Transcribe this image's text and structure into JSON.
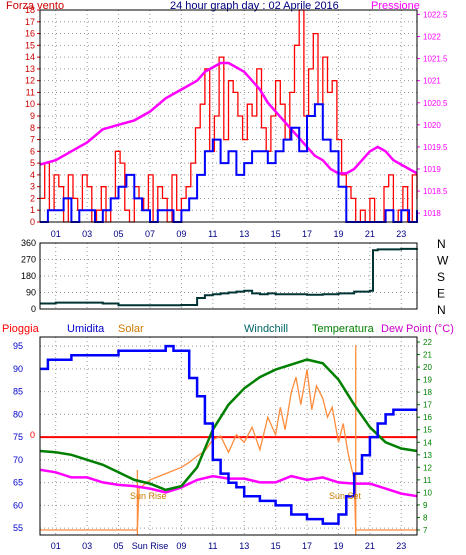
{
  "colors": {
    "wind": "#ff0000",
    "wind_avg": "#0000ff",
    "pressure": "#ff00ff",
    "direction": "#003333",
    "rain": "#ff0000",
    "humidity": "#0000ff",
    "solar": "#ff8c3c",
    "windchill": "#006666",
    "temperature": "#008000",
    "dew_point": "#ff00ff",
    "axis_left": "#cc0000",
    "axis_right": "#ff00ff",
    "grid": "#999999",
    "frame": "#000000"
  },
  "chart_data": [
    {
      "type": "line",
      "title": "24 hour graph day : 02 Aprile 2016",
      "label_left": "Forza vento",
      "label_right": "Pressione",
      "y_left_ticks": [
        "0",
        "1",
        "2",
        "3",
        "4",
        "5",
        "6",
        "7",
        "8",
        "9",
        "10",
        "11",
        "12",
        "13",
        "14",
        "15",
        "16",
        "17",
        "18"
      ],
      "y_right_ticks": [
        "1018",
        "1018.5",
        "1019",
        "1019.5",
        "1020",
        "1020.5",
        "1021",
        "1021.5",
        "1022",
        "1022.5"
      ],
      "x_ticks": [
        "01",
        "03",
        "05",
        "07",
        "09",
        "11",
        "13",
        "15",
        "17",
        "19",
        "21",
        "23"
      ],
      "ylim_left": [
        0,
        18
      ],
      "ylim_right": [
        1017.8,
        1022.6
      ],
      "xlim": [
        0,
        24
      ],
      "series": [
        {
          "name": "wind_gust",
          "x": [
            0,
            0.3,
            0.6,
            0.9,
            1.2,
            1.5,
            1.8,
            2.1,
            2.4,
            2.7,
            3.0,
            3.3,
            3.6,
            3.9,
            4.2,
            4.5,
            4.8,
            5.1,
            5.4,
            5.7,
            6.0,
            6.3,
            6.6,
            6.9,
            7.2,
            7.5,
            7.8,
            8.1,
            8.4,
            8.7,
            9.0,
            9.3,
            9.6,
            9.9,
            10.2,
            10.5,
            10.8,
            11.1,
            11.4,
            11.7,
            12.0,
            12.3,
            12.6,
            12.9,
            13.2,
            13.5,
            13.8,
            14.1,
            14.4,
            14.7,
            15.0,
            15.3,
            15.6,
            15.9,
            16.2,
            16.5,
            16.8,
            17.1,
            17.4,
            17.7,
            18.0,
            18.3,
            18.6,
            18.9,
            19.2,
            19.5,
            19.8,
            20.1,
            20.4,
            20.7,
            21.0,
            21.3,
            21.6,
            21.9,
            22.2,
            22.5,
            22.8,
            23.1,
            23.4,
            23.7,
            24.0
          ],
          "values": [
            2,
            5,
            1,
            4,
            3,
            0,
            4,
            2,
            1,
            4,
            3,
            0,
            1,
            3,
            0,
            2,
            6,
            5,
            1,
            0,
            3,
            2,
            1,
            4,
            0,
            3,
            2,
            0,
            4,
            1,
            2,
            3,
            5,
            8,
            10,
            13,
            6,
            9,
            14,
            7,
            12,
            11,
            9,
            7,
            10,
            9,
            13,
            8,
            6,
            9,
            12,
            10,
            7,
            11,
            15,
            18,
            9,
            13,
            16,
            10,
            14,
            11,
            12,
            7,
            4,
            3,
            2,
            0,
            1,
            0,
            2,
            0,
            0,
            3,
            4,
            0,
            1,
            3,
            0,
            4,
            2
          ]
        },
        {
          "name": "wind_avg",
          "x": [
            0,
            0.5,
            1,
            1.5,
            2,
            2.5,
            3,
            3.5,
            4,
            4.5,
            5,
            5.5,
            6,
            6.5,
            7,
            7.5,
            8,
            8.5,
            9,
            9.5,
            10,
            10.5,
            11,
            11.5,
            12,
            12.5,
            13,
            13.5,
            14,
            14.5,
            15,
            15.5,
            16,
            16.5,
            17,
            17.5,
            18,
            18.5,
            19,
            19.5,
            20,
            20.5,
            21,
            21.5,
            22,
            22.5,
            23,
            23.5,
            24
          ],
          "values": [
            0,
            1,
            1,
            2,
            0,
            1,
            1,
            0,
            1,
            2,
            3,
            4,
            2,
            1,
            0,
            1,
            1,
            0,
            1,
            2,
            4,
            6,
            7,
            5,
            6,
            4,
            5,
            6,
            6,
            5,
            6,
            7,
            8,
            6,
            9,
            10,
            7,
            6,
            3,
            0,
            0,
            0,
            0,
            0,
            1,
            0,
            1,
            0,
            1
          ]
        },
        {
          "name": "pressure",
          "x": [
            0,
            1,
            2,
            3,
            4,
            5,
            6,
            7,
            8,
            9,
            10,
            10.5,
            11,
            11.5,
            12,
            12.5,
            13,
            13.5,
            14,
            14.5,
            15,
            15.5,
            16,
            16.5,
            17,
            17.5,
            18,
            18.5,
            19,
            19.5,
            20,
            20.5,
            21,
            21.5,
            22,
            22.5,
            23,
            23.5,
            24
          ],
          "values": [
            1019.1,
            1019.2,
            1019.4,
            1019.6,
            1019.9,
            1020.0,
            1020.1,
            1020.3,
            1020.6,
            1020.8,
            1021.0,
            1021.2,
            1021.3,
            1021.4,
            1021.4,
            1021.3,
            1021.2,
            1021.0,
            1020.8,
            1020.5,
            1020.3,
            1020.1,
            1019.9,
            1019.7,
            1019.5,
            1019.3,
            1019.2,
            1019.0,
            1018.9,
            1018.9,
            1019.0,
            1019.2,
            1019.4,
            1019.5,
            1019.4,
            1019.2,
            1019.1,
            1019.0,
            1018.9
          ]
        }
      ]
    },
    {
      "type": "line",
      "y_ticks": [
        "360",
        "270",
        "180",
        "90",
        "0"
      ],
      "right_labels": [
        "N",
        "W",
        "S",
        "E",
        "N"
      ],
      "ylim": [
        0,
        360
      ],
      "xlim": [
        0,
        24
      ],
      "series": [
        {
          "name": "wind_direction",
          "x": [
            0,
            1,
            2,
            3,
            4,
            5,
            6,
            7,
            8,
            9,
            10,
            10.5,
            11,
            11.5,
            12,
            12.5,
            13,
            13.5,
            14,
            14.5,
            15,
            16,
            17,
            18,
            19,
            20,
            21,
            21.2,
            21.5,
            22,
            23,
            24
          ],
          "values": [
            30,
            35,
            35,
            35,
            30,
            20,
            20,
            20,
            20,
            22,
            60,
            75,
            80,
            85,
            90,
            95,
            100,
            85,
            80,
            85,
            80,
            80,
            78,
            80,
            85,
            95,
            100,
            320,
            325,
            325,
            328,
            330
          ]
        }
      ]
    },
    {
      "type": "line",
      "label_rain": "Pioggia",
      "label_humidity": "Umidita",
      "label_solar": "Solar",
      "label_windchill": "Windchill",
      "label_temperature": "Temperatura",
      "label_dew": "Dew Point (°C)",
      "rain_marker": "0",
      "y_left_ticks": [
        "95",
        "90",
        "85",
        "80",
        "75",
        "70",
        "65",
        "60",
        "55"
      ],
      "y_right_ticks": [
        "22",
        "21",
        "20",
        "19",
        "18",
        "17",
        "16",
        "15",
        "14",
        "13",
        "12",
        "11",
        "10",
        "9",
        "8",
        "7"
      ],
      "x_ticks": [
        "01",
        "03",
        "05",
        "Sun Rise",
        "09",
        "11",
        "13",
        "15",
        "17",
        "19",
        "21",
        "23"
      ],
      "annotations": [
        "Sun Rise",
        "Sun Set"
      ],
      "ylim_left": [
        53.5,
        97
      ],
      "ylim_right": [
        6.6,
        22.4
      ],
      "xlim": [
        0,
        24
      ],
      "series": [
        {
          "name": "humidity",
          "x": [
            0,
            0.5,
            1,
            2,
            3,
            4,
            5,
            6,
            7,
            8,
            8.5,
            9,
            9.5,
            10,
            10.5,
            11,
            11.5,
            12,
            12.5,
            13,
            14,
            15,
            16,
            17,
            18,
            18.5,
            19,
            19.5,
            20,
            20.5,
            21,
            21.5,
            22,
            22.5,
            23,
            23.5,
            24
          ],
          "values": [
            90,
            92,
            92,
            93,
            93,
            93,
            94,
            94,
            94,
            95,
            94,
            94,
            88,
            84,
            78,
            70,
            67,
            65,
            64,
            62,
            61,
            60,
            58,
            57,
            56,
            56,
            58,
            62,
            67,
            71,
            75,
            78,
            80,
            81,
            81,
            81,
            81
          ]
        },
        {
          "name": "temperature",
          "x": [
            0,
            1,
            2,
            3,
            4,
            5,
            6,
            7,
            8,
            9,
            10,
            11,
            12,
            13,
            14,
            15,
            16,
            17,
            18,
            19,
            20,
            21,
            22,
            23,
            24
          ],
          "values": [
            13.3,
            13.2,
            13.0,
            12.6,
            12.2,
            11.6,
            11.0,
            10.7,
            10.2,
            10.5,
            12.0,
            15.0,
            17.0,
            18.3,
            19.2,
            19.8,
            20.2,
            20.6,
            20.3,
            19.0,
            17.0,
            15.2,
            14.0,
            13.5,
            13.3
          ]
        },
        {
          "name": "dew_point",
          "x": [
            0,
            1,
            2,
            3,
            4,
            5,
            6,
            7,
            8,
            9,
            10,
            11,
            12,
            13,
            14,
            15,
            16,
            17,
            18,
            19,
            20,
            21,
            22,
            23,
            24
          ],
          "values": [
            11.8,
            11.6,
            11.2,
            11.2,
            10.8,
            10.6,
            10.5,
            10.3,
            10.0,
            10.4,
            11.0,
            11.3,
            11.1,
            11.1,
            10.8,
            10.8,
            11.3,
            11.0,
            11.2,
            10.8,
            10.7,
            10.7,
            10.3,
            9.9,
            9.7
          ]
        },
        {
          "name": "solar",
          "x": [
            0,
            6.2,
            6.3,
            7,
            8,
            9,
            9.5,
            10,
            10.5,
            11,
            11.5,
            12,
            12.5,
            13,
            13.5,
            14,
            14.5,
            15,
            15.3,
            15.6,
            16,
            16.3,
            16.6,
            17,
            17.3,
            17.6,
            18,
            18.3,
            18.6,
            19,
            19.3,
            19.6,
            20,
            20.1,
            24
          ],
          "values": [
            7.0,
            7.0,
            10.3,
            11.0,
            11.5,
            12.0,
            12.4,
            12.9,
            13.3,
            14.2,
            14.5,
            13.2,
            14.6,
            14.0,
            15.2,
            13.4,
            16.0,
            14.6,
            16.8,
            15.0,
            18.0,
            19.2,
            17.0,
            19.8,
            16.6,
            18.5,
            17.5,
            16.0,
            16.8,
            14.0,
            15.5,
            13.2,
            11.0,
            7.0,
            7.0
          ]
        }
      ]
    }
  ]
}
